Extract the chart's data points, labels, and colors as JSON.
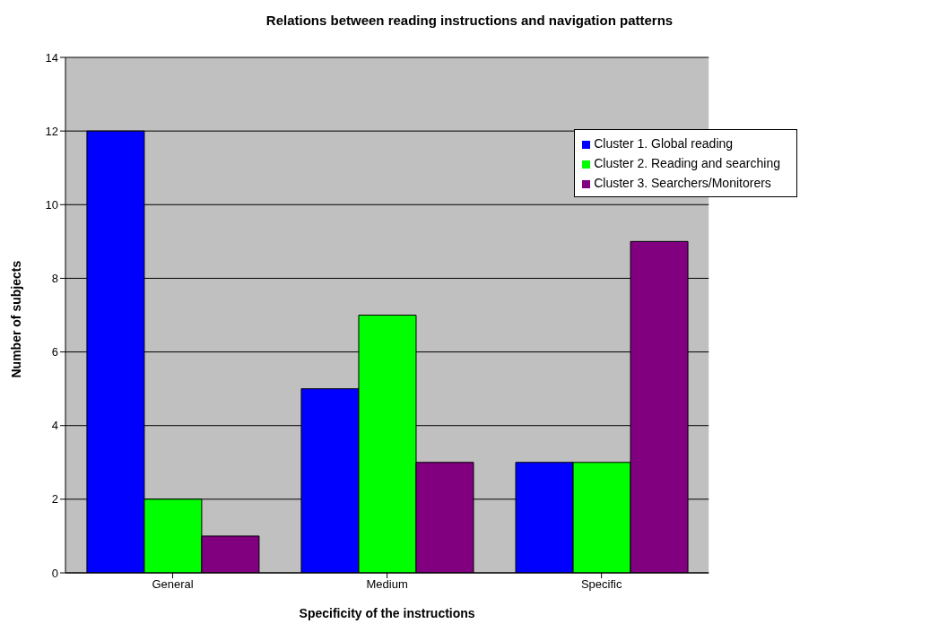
{
  "chart_data": {
    "type": "bar",
    "title": "Relations between reading instructions and navigation patterns",
    "xlabel": "Specificity of the instructions",
    "ylabel": "Number of subjects",
    "categories": [
      "General",
      "Medium",
      "Specific"
    ],
    "series": [
      {
        "name": "Cluster 1. Global reading",
        "color": "#0000ff",
        "values": [
          12,
          5,
          3
        ]
      },
      {
        "name": "Cluster 2. Reading and searching",
        "color": "#00ff00",
        "values": [
          2,
          7,
          3
        ]
      },
      {
        "name": "Cluster 3. Searchers/Monitorers",
        "color": "#800080",
        "values": [
          1,
          3,
          9
        ]
      }
    ],
    "ylim": [
      0,
      14
    ],
    "yticks": [
      0,
      2,
      4,
      6,
      8,
      10,
      12,
      14
    ],
    "grid": "y",
    "legend": "top right"
  }
}
